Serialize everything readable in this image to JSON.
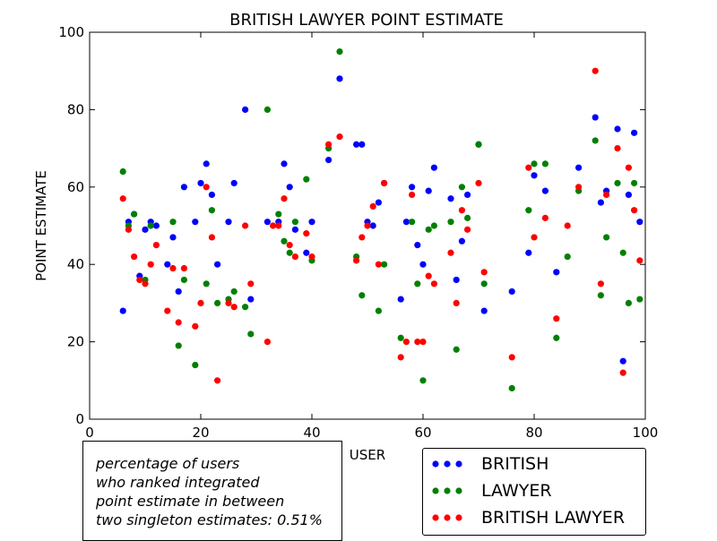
{
  "chart_data": {
    "type": "scatter",
    "title": "BRITISH LAWYER POINT ESTIMATE",
    "xlabel": "USER",
    "ylabel": "POINT ESTIMATE",
    "xlim": [
      0,
      100
    ],
    "ylim": [
      0,
      100
    ],
    "xticks": [
      0,
      20,
      40,
      60,
      80,
      100
    ],
    "yticks": [
      0,
      20,
      40,
      60,
      80,
      100
    ],
    "grid": false,
    "legend_position": "bottom-right, below axes",
    "series": [
      {
        "name": "BRITISH",
        "color": "#0000ff",
        "points": [
          [
            6,
            28
          ],
          [
            7,
            51
          ],
          [
            8,
            53
          ],
          [
            9,
            37
          ],
          [
            10,
            49
          ],
          [
            11,
            51
          ],
          [
            12,
            50
          ],
          [
            14,
            40
          ],
          [
            15,
            47
          ],
          [
            16,
            33
          ],
          [
            17,
            60
          ],
          [
            19,
            51
          ],
          [
            20,
            61
          ],
          [
            21,
            66
          ],
          [
            22,
            58
          ],
          [
            23,
            40
          ],
          [
            25,
            51
          ],
          [
            26,
            61
          ],
          [
            28,
            80
          ],
          [
            29,
            31
          ],
          [
            32,
            51
          ],
          [
            34,
            51
          ],
          [
            35,
            66
          ],
          [
            36,
            60
          ],
          [
            37,
            49
          ],
          [
            39,
            43
          ],
          [
            40,
            51
          ],
          [
            43,
            67
          ],
          [
            45,
            88
          ],
          [
            48,
            71
          ],
          [
            49,
            71
          ],
          [
            50,
            51
          ],
          [
            51,
            50
          ],
          [
            52,
            56
          ],
          [
            53,
            61
          ],
          [
            56,
            31
          ],
          [
            57,
            51
          ],
          [
            58,
            60
          ],
          [
            59,
            45
          ],
          [
            60,
            40
          ],
          [
            61,
            59
          ],
          [
            62,
            65
          ],
          [
            65,
            57
          ],
          [
            66,
            36
          ],
          [
            67,
            46
          ],
          [
            68,
            58
          ],
          [
            70,
            71
          ],
          [
            71,
            28
          ],
          [
            76,
            33
          ],
          [
            79,
            43
          ],
          [
            80,
            63
          ],
          [
            82,
            59
          ],
          [
            84,
            38
          ],
          [
            88,
            65
          ],
          [
            91,
            78
          ],
          [
            92,
            56
          ],
          [
            93,
            59
          ],
          [
            95,
            75
          ],
          [
            96,
            15
          ],
          [
            97,
            58
          ],
          [
            98,
            74
          ],
          [
            99,
            51
          ]
        ]
      },
      {
        "name": "LAWYER",
        "color": "#008000",
        "points": [
          [
            6,
            64
          ],
          [
            7,
            50
          ],
          [
            8,
            53
          ],
          [
            10,
            36
          ],
          [
            11,
            50
          ],
          [
            15,
            51
          ],
          [
            16,
            19
          ],
          [
            17,
            36
          ],
          [
            19,
            14
          ],
          [
            21,
            35
          ],
          [
            22,
            54
          ],
          [
            23,
            30
          ],
          [
            25,
            31
          ],
          [
            26,
            33
          ],
          [
            28,
            29
          ],
          [
            29,
            22
          ],
          [
            32,
            80
          ],
          [
            34,
            53
          ],
          [
            35,
            46
          ],
          [
            36,
            43
          ],
          [
            37,
            51
          ],
          [
            39,
            62
          ],
          [
            40,
            41
          ],
          [
            43,
            70
          ],
          [
            45,
            95
          ],
          [
            48,
            42
          ],
          [
            49,
            32
          ],
          [
            52,
            28
          ],
          [
            53,
            40
          ],
          [
            56,
            21
          ],
          [
            58,
            51
          ],
          [
            59,
            35
          ],
          [
            60,
            10
          ],
          [
            61,
            49
          ],
          [
            62,
            50
          ],
          [
            65,
            51
          ],
          [
            66,
            18
          ],
          [
            67,
            60
          ],
          [
            68,
            52
          ],
          [
            70,
            71
          ],
          [
            71,
            35
          ],
          [
            76,
            8
          ],
          [
            79,
            54
          ],
          [
            80,
            66
          ],
          [
            82,
            66
          ],
          [
            84,
            21
          ],
          [
            86,
            42
          ],
          [
            88,
            59
          ],
          [
            91,
            72
          ],
          [
            92,
            32
          ],
          [
            93,
            47
          ],
          [
            95,
            61
          ],
          [
            96,
            43
          ],
          [
            97,
            30
          ],
          [
            98,
            61
          ],
          [
            99,
            31
          ]
        ]
      },
      {
        "name": "BRITISH LAWYER",
        "color": "#ff0000",
        "points": [
          [
            6,
            57
          ],
          [
            7,
            49
          ],
          [
            8,
            42
          ],
          [
            9,
            36
          ],
          [
            10,
            35
          ],
          [
            11,
            40
          ],
          [
            12,
            45
          ],
          [
            14,
            28
          ],
          [
            15,
            39
          ],
          [
            16,
            25
          ],
          [
            17,
            39
          ],
          [
            19,
            24
          ],
          [
            20,
            30
          ],
          [
            21,
            60
          ],
          [
            22,
            47
          ],
          [
            23,
            10
          ],
          [
            25,
            30
          ],
          [
            26,
            29
          ],
          [
            28,
            50
          ],
          [
            29,
            35
          ],
          [
            32,
            20
          ],
          [
            33,
            50
          ],
          [
            34,
            50
          ],
          [
            35,
            57
          ],
          [
            36,
            45
          ],
          [
            37,
            42
          ],
          [
            39,
            48
          ],
          [
            40,
            42
          ],
          [
            43,
            71
          ],
          [
            45,
            73
          ],
          [
            48,
            41
          ],
          [
            49,
            47
          ],
          [
            50,
            50
          ],
          [
            51,
            55
          ],
          [
            52,
            40
          ],
          [
            53,
            61
          ],
          [
            56,
            16
          ],
          [
            57,
            20
          ],
          [
            58,
            58
          ],
          [
            59,
            20
          ],
          [
            60,
            20
          ],
          [
            61,
            37
          ],
          [
            62,
            35
          ],
          [
            65,
            43
          ],
          [
            66,
            30
          ],
          [
            67,
            54
          ],
          [
            68,
            49
          ],
          [
            70,
            61
          ],
          [
            71,
            38
          ],
          [
            76,
            16
          ],
          [
            79,
            65
          ],
          [
            80,
            47
          ],
          [
            82,
            52
          ],
          [
            84,
            26
          ],
          [
            86,
            50
          ],
          [
            88,
            60
          ],
          [
            91,
            90
          ],
          [
            92,
            35
          ],
          [
            93,
            58
          ],
          [
            95,
            70
          ],
          [
            96,
            12
          ],
          [
            97,
            65
          ],
          [
            98,
            54
          ],
          [
            99,
            41
          ]
        ]
      }
    ],
    "annotation": {
      "lines": [
        "percentage of users",
        "who ranked integrated",
        "point estimate in between",
        "two singleton estimates: 0.51%"
      ]
    }
  }
}
